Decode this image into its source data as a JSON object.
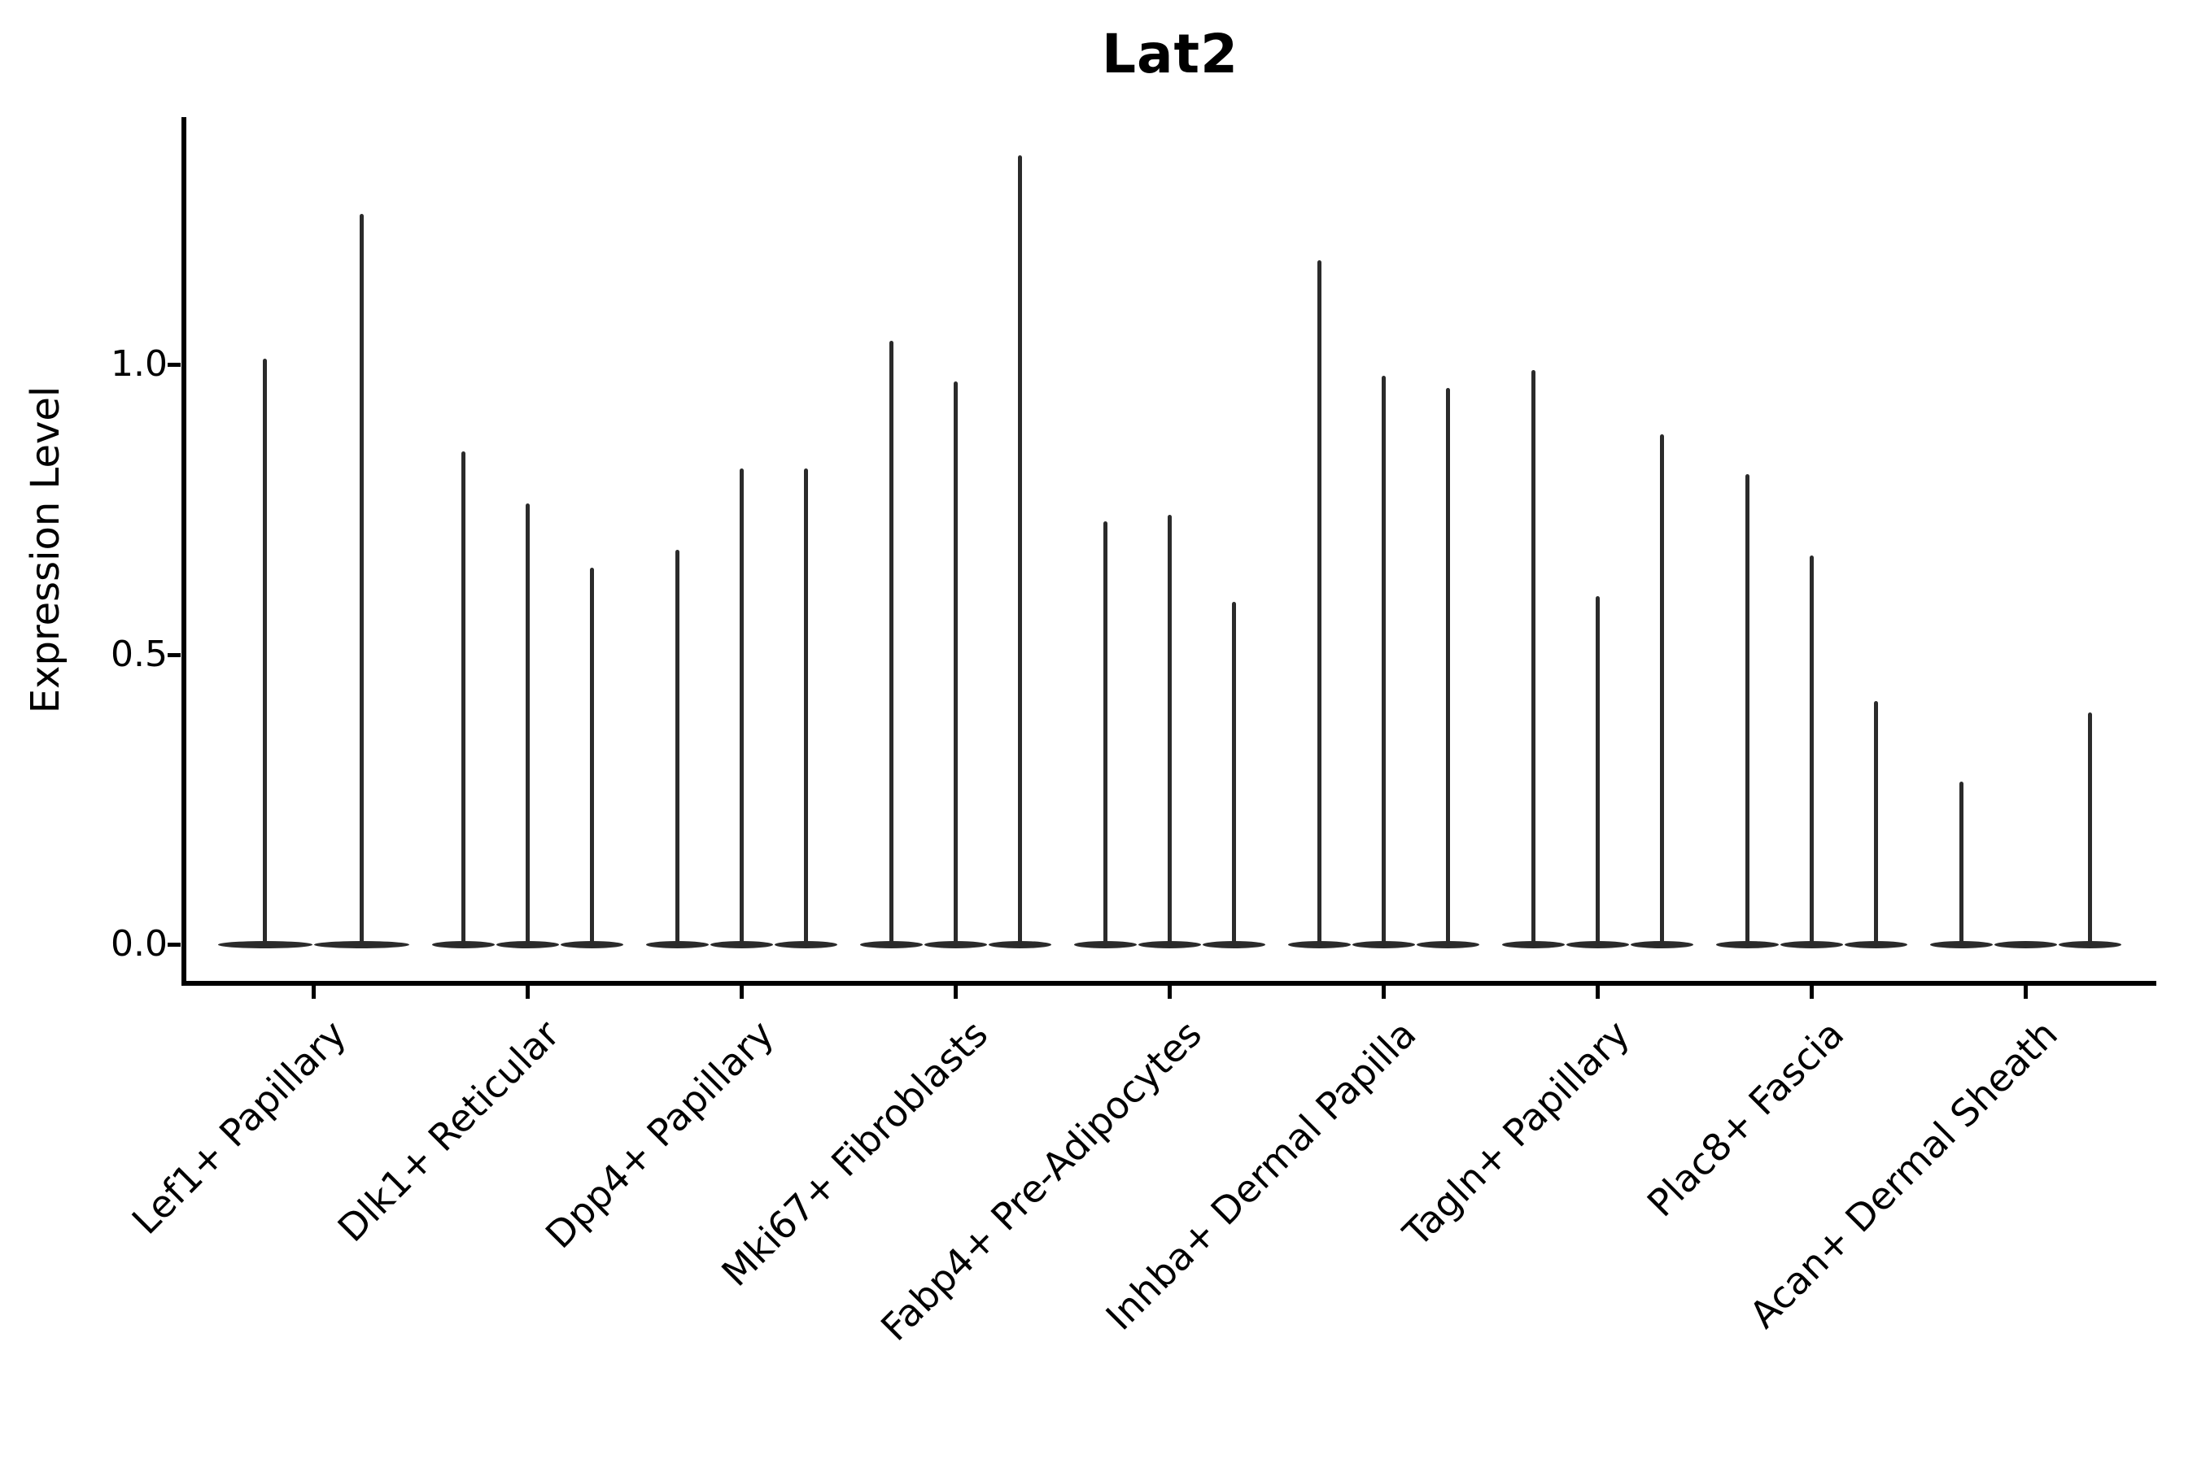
{
  "chart_data": {
    "type": "violin",
    "title": "Lat2",
    "xlabel": "",
    "ylabel": "Expression Level",
    "legend_position": "none",
    "grid": false,
    "background_color": "#ffffff",
    "violin_color": "#2b2b2b",
    "axis_color": "#000000",
    "ylim": [
      -0.07,
      1.43
    ],
    "y_ticks": [
      {
        "label": "0.0",
        "value": 0.0
      },
      {
        "label": "0.5",
        "value": 0.5
      },
      {
        "label": "1.0",
        "value": 1.0
      }
    ],
    "categories": [
      "Lef1+ Papillary",
      "Dlk1+ Reticular",
      "Dpp4+ Papillary",
      "Mki67+ Fibroblasts",
      "Fabp4+ Pre-Adipocytes",
      "Inhba+ Dermal Papilla",
      "Tagln+ Papillary",
      "Plac8+ Fascia",
      "Acan+ Dermal Sheath"
    ],
    "series": [
      {
        "category": "Lef1+ Papillary",
        "violin_maxima": [
          1.01,
          1.26
        ]
      },
      {
        "category": "Dlk1+ Reticular",
        "violin_maxima": [
          0.85,
          0.76,
          0.65
        ]
      },
      {
        "category": "Dpp4+ Papillary",
        "violin_maxima": [
          0.68,
          0.82,
          0.82
        ]
      },
      {
        "category": "Mki67+ Fibroblasts",
        "violin_maxima": [
          1.04,
          0.97,
          1.36
        ]
      },
      {
        "category": "Fabp4+ Pre-Adipocytes",
        "violin_maxima": [
          0.73,
          0.74,
          0.59
        ]
      },
      {
        "category": "Inhba+ Dermal Papilla",
        "violin_maxima": [
          1.18,
          0.98,
          0.96
        ]
      },
      {
        "category": "Tagln+ Papillary",
        "violin_maxima": [
          0.99,
          0.6,
          0.88
        ]
      },
      {
        "category": "Plac8+ Fascia",
        "violin_maxima": [
          0.81,
          0.67,
          0.42
        ]
      },
      {
        "category": "Acan+ Dermal Sheath",
        "violin_maxima": [
          0.28,
          0.0,
          0.4
        ]
      }
    ]
  }
}
